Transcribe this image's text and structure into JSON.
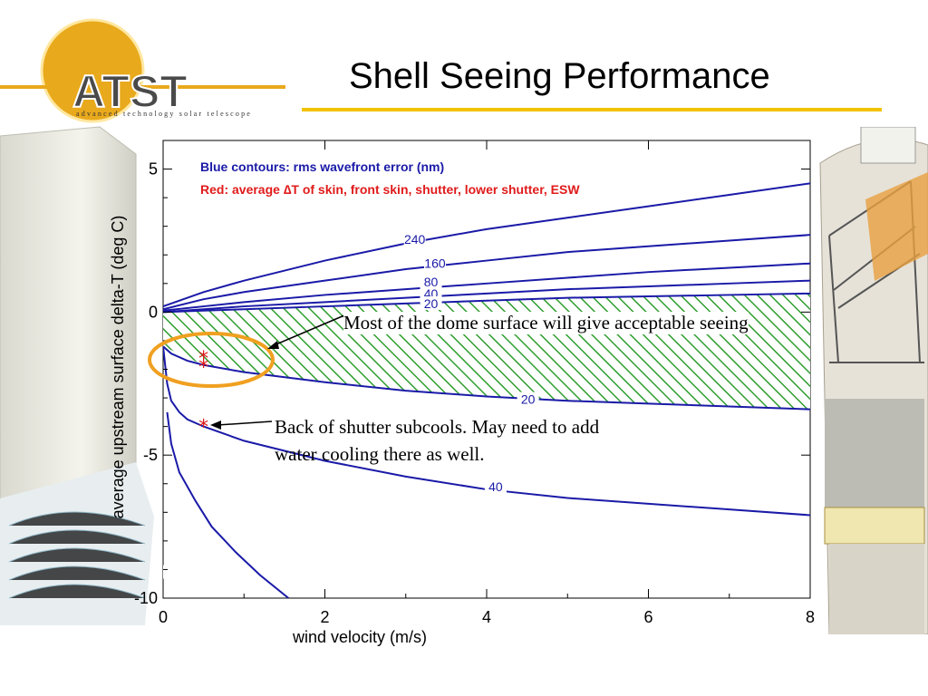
{
  "header": {
    "logo_text": "ATST",
    "logo_subtitle": "advanced technology solar telescope",
    "title": "Shell Seeing Performance"
  },
  "colors": {
    "contour": "#1a1aa8",
    "marker": "#e01b1b",
    "hatch": "#2f9e2f",
    "accent": "#f2c200",
    "highlight": "#f0a020"
  },
  "chart_data": {
    "type": "line",
    "xlabel": "wind velocity (m/s)",
    "ylabel": "average upstream surface delta-T (deg C)",
    "xlim": [
      0,
      8
    ],
    "ylim": [
      -10,
      6
    ],
    "x_ticks": [
      "0",
      "2",
      "4",
      "6",
      "8"
    ],
    "y_ticks": [
      "5",
      "0",
      "-5",
      "-10"
    ],
    "legend_lines": [
      "Blue contours: rms wavefront error (nm)",
      "Red: average ∆T of skin, front skin, shutter, lower shutter, ESW"
    ],
    "series": [
      {
        "name": "240",
        "x": [
          0,
          0.5,
          1,
          2,
          3,
          4,
          5,
          6,
          7,
          8
        ],
        "y": [
          0.2,
          0.7,
          1.1,
          1.8,
          2.4,
          2.9,
          3.3,
          3.7,
          4.1,
          4.5
        ],
        "label_at": [
          3.1,
          2.55
        ]
      },
      {
        "name": "160",
        "x": [
          0,
          0.5,
          1,
          2,
          3,
          4,
          5,
          6,
          7,
          8
        ],
        "y": [
          0.1,
          0.45,
          0.7,
          1.1,
          1.5,
          1.8,
          2.1,
          2.3,
          2.5,
          2.7
        ],
        "label_at": [
          3.35,
          1.7
        ]
      },
      {
        "name": "80",
        "x": [
          0,
          0.5,
          1,
          2,
          3,
          4,
          5,
          6,
          7,
          8
        ],
        "y": [
          0.05,
          0.2,
          0.35,
          0.6,
          0.8,
          1.0,
          1.2,
          1.4,
          1.55,
          1.7
        ],
        "label_at": [
          3.3,
          1.05
        ]
      },
      {
        "name": "40",
        "x": [
          0,
          0.5,
          1,
          2,
          3,
          4,
          5,
          6,
          7,
          8
        ],
        "y": [
          0.0,
          0.1,
          0.2,
          0.35,
          0.5,
          0.65,
          0.8,
          0.9,
          1.0,
          1.1
        ],
        "label_at": [
          3.3,
          0.65
        ]
      },
      {
        "name": "20",
        "x": [
          0,
          0.5,
          1,
          2,
          3,
          4,
          5,
          6,
          7,
          8
        ],
        "y": [
          0.0,
          0.05,
          0.1,
          0.2,
          0.3,
          0.4,
          0.5,
          0.55,
          0.6,
          0.65
        ],
        "label_at": [
          3.3,
          0.3
        ]
      },
      {
        "name": "20",
        "x": [
          0,
          0.1,
          0.3,
          0.5,
          1,
          2,
          3,
          4,
          5,
          6,
          7,
          8
        ],
        "y": [
          -1.2,
          -1.45,
          -1.7,
          -1.85,
          -2.1,
          -2.45,
          -2.75,
          -2.95,
          -3.1,
          -3.2,
          -3.3,
          -3.4
        ],
        "label_at": [
          4.5,
          -3.05
        ]
      },
      {
        "name": "40",
        "x": [
          0,
          0.05,
          0.1,
          0.2,
          0.3,
          0.5,
          1,
          2,
          3,
          4,
          5,
          6,
          7,
          8
        ],
        "y": [
          -1.2,
          -2.5,
          -3.1,
          -3.5,
          -3.75,
          -4.0,
          -4.5,
          -5.2,
          -5.75,
          -6.2,
          -6.5,
          -6.7,
          -6.9,
          -7.1
        ],
        "label_at": [
          4.1,
          -6.1
        ]
      },
      {
        "name": "20",
        "x": [
          0.05,
          0.1,
          0.2,
          0.4,
          0.6,
          0.9,
          1.2,
          1.55
        ],
        "y": [
          -3.5,
          -4.6,
          -5.6,
          -6.6,
          -7.5,
          -8.4,
          -9.2,
          -10.0
        ],
        "label_at": [
          -0.1,
          -9.1
        ]
      }
    ],
    "markers": [
      {
        "x": 0.5,
        "y": -1.6
      },
      {
        "x": 0.5,
        "y": -1.9
      },
      {
        "x": 0.5,
        "y": -4.0
      }
    ],
    "acceptable_region": {
      "x_range": [
        0,
        8
      ],
      "upper": [
        0.0,
        0.05,
        0.1,
        0.2,
        0.3,
        0.4,
        0.5,
        0.55,
        0.6,
        0.65
      ],
      "lower": [
        -1.2,
        -1.85,
        -2.1,
        -2.45,
        -2.75,
        -2.95,
        -3.1,
        -3.2,
        -3.3,
        -3.4
      ]
    },
    "annotations": [
      "Most of the dome surface will give acceptable seeing",
      "Back of shutter subcools. May need to add",
      "water cooling there as well."
    ]
  }
}
